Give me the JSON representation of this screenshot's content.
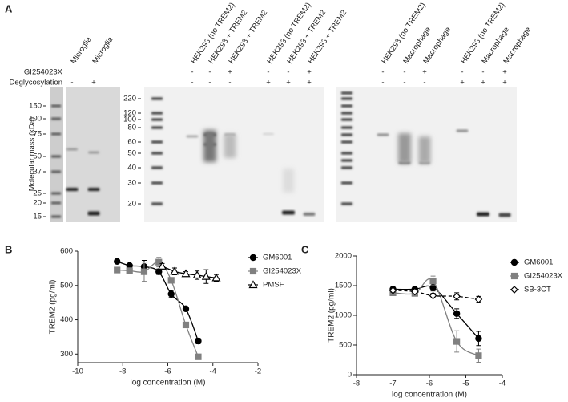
{
  "figure": {
    "panel_a": {
      "label": "A",
      "row_labels": [
        "GI254023X",
        "Deglycosylation"
      ],
      "mass_axis_label": "Molecular mass (kDa)",
      "blots": [
        {
          "lanes": [
            "Microglia",
            "Microglia"
          ],
          "gi254023x": [
            null,
            null
          ],
          "deglycosylation": [
            "-",
            "+"
          ],
          "mass_labels": [
            150,
            100,
            75,
            50,
            37,
            25,
            20,
            15
          ]
        },
        {
          "lanes": [
            "HEK293 (no TREM2)",
            "HEK293 + TREM2",
            "HEK293 + TREM2",
            "HEK293 (no TREM2)",
            "HEK293 + TREM2",
            "HEK293 + TREM2"
          ],
          "gi254023x": [
            "-",
            "-",
            "+",
            "-",
            "-",
            "+"
          ],
          "deglycosylation": [
            "-",
            "-",
            "-",
            "+",
            "+",
            "+"
          ],
          "mass_labels": [
            220,
            120,
            100,
            80,
            60,
            50,
            40,
            30,
            20
          ]
        },
        {
          "lanes": [
            "HEK293 (no TREM2)",
            "Macrophage",
            "Macrophage",
            "HEK293 (no TREM2)",
            "Macrophage",
            "Macrophage"
          ],
          "gi254023x": [
            "-",
            "-",
            "+",
            "-",
            "-",
            "+"
          ],
          "deglycosylation": [
            "-",
            "-",
            "-",
            "+",
            "+",
            "+"
          ]
        }
      ]
    }
  },
  "chart_data": [
    {
      "type": "scatter",
      "panel_label": "B",
      "x_label": "log concentration (M)",
      "y_label": "TREM2 (pg/ml)",
      "xlim": [
        -10,
        -2
      ],
      "xticks": [
        -10,
        -8,
        -6,
        -4,
        -2
      ],
      "ylim": [
        275,
        600
      ],
      "yticks": [
        300,
        400,
        500,
        600
      ],
      "legend": "right",
      "series": [
        {
          "name": "GM6001",
          "color": "#000000",
          "marker": "circle",
          "line_style": "solid",
          "x": [
            -8.25,
            -7.7,
            -7.05,
            -6.4,
            -5.85,
            -5.2,
            -4.65
          ],
          "values": [
            570,
            558,
            555,
            540,
            475,
            432,
            338
          ],
          "errors": [
            4,
            5,
            18,
            8,
            10,
            6,
            8
          ]
        },
        {
          "name": "GI254023X",
          "color": "#808080",
          "marker": "square",
          "line_style": "solid",
          "x": [
            -8.25,
            -7.7,
            -7.05,
            -6.4,
            -5.85,
            -5.2,
            -4.65
          ],
          "values": [
            545,
            543,
            540,
            568,
            515,
            385,
            292
          ],
          "errors": [
            8,
            6,
            28,
            14,
            6,
            8,
            4
          ]
        },
        {
          "name": "PMSF",
          "color": "#000000",
          "marker": "triangle",
          "line_style": "solid",
          "x": [
            -6.25,
            -5.7,
            -5.2,
            -4.7,
            -4.3,
            -3.85
          ],
          "values": [
            556,
            541,
            534,
            530,
            526,
            522
          ],
          "errors": [
            8,
            10,
            6,
            12,
            20,
            10
          ]
        }
      ]
    },
    {
      "type": "scatter",
      "panel_label": "C",
      "x_label": "log concentration (M)",
      "y_label": "TREM2 (pg/ml)",
      "xlim": [
        -8,
        -4
      ],
      "xticks": [
        -8,
        -7,
        -6,
        -5,
        -4
      ],
      "ylim": [
        0,
        2000
      ],
      "yticks": [
        0,
        500,
        1000,
        1500,
        2000
      ],
      "legend": "right",
      "series": [
        {
          "name": "GM6001",
          "color": "#000000",
          "marker": "circle",
          "line_style": "solid",
          "x": [
            -7,
            -6.4,
            -5.9,
            -5.25,
            -4.65
          ],
          "values": [
            1440,
            1440,
            1470,
            1030,
            610
          ],
          "errors": [
            40,
            50,
            60,
            80,
            120
          ]
        },
        {
          "name": "GI254023X",
          "color": "#808080",
          "marker": "square",
          "line_style": "solid",
          "x": [
            -7,
            -6.4,
            -5.9,
            -5.25,
            -4.65
          ],
          "values": [
            1380,
            1370,
            1580,
            560,
            320
          ],
          "errors": [
            40,
            40,
            80,
            180,
            110
          ]
        },
        {
          "name": "SB-3CT",
          "color": "#000000",
          "marker": "diamond",
          "line_style": "dashed",
          "x": [
            -7,
            -6.4,
            -5.9,
            -5.25,
            -4.65
          ],
          "values": [
            1420,
            1400,
            1330,
            1320,
            1270
          ],
          "errors": [
            30,
            30,
            40,
            60,
            50
          ]
        }
      ]
    }
  ]
}
